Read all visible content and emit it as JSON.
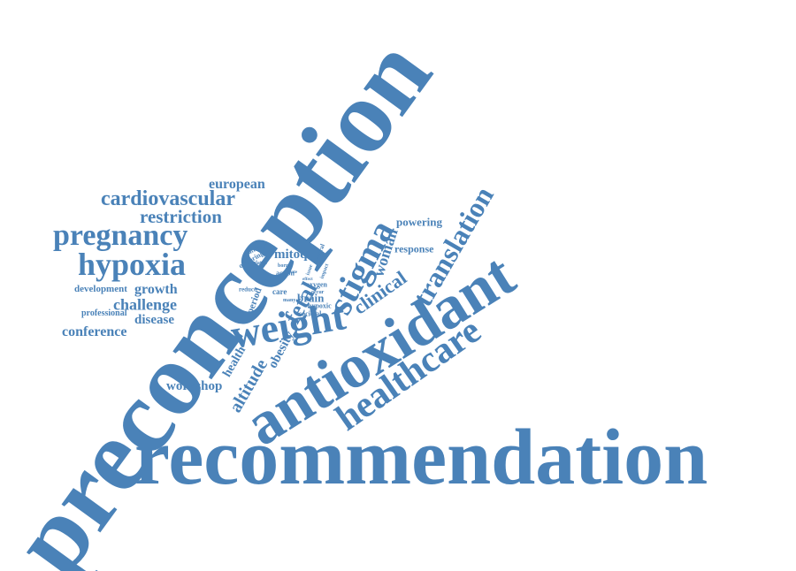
{
  "color": "#4a82b8",
  "words": [
    "preconception",
    "recommendation",
    "antioxidant",
    "weight",
    "healthcare",
    "stigma",
    "translation",
    "hypoxia",
    "pregnancy",
    "cardiovascular",
    "restriction",
    "european",
    "fetal",
    "clinical",
    "woman",
    "altitude",
    "challenge",
    "conference",
    "workshop",
    "growth",
    "development",
    "disease",
    "professional",
    "mitoq",
    "response",
    "powering",
    "obesity",
    "health",
    "brain",
    "period",
    "care",
    "oxygen",
    "hypoxic",
    "societal",
    "action",
    "reduce",
    "many",
    "offspring",
    "related",
    "attitude",
    "general",
    "impact",
    "issue",
    "effect",
    "occur",
    "born",
    "state",
    "study"
  ]
}
